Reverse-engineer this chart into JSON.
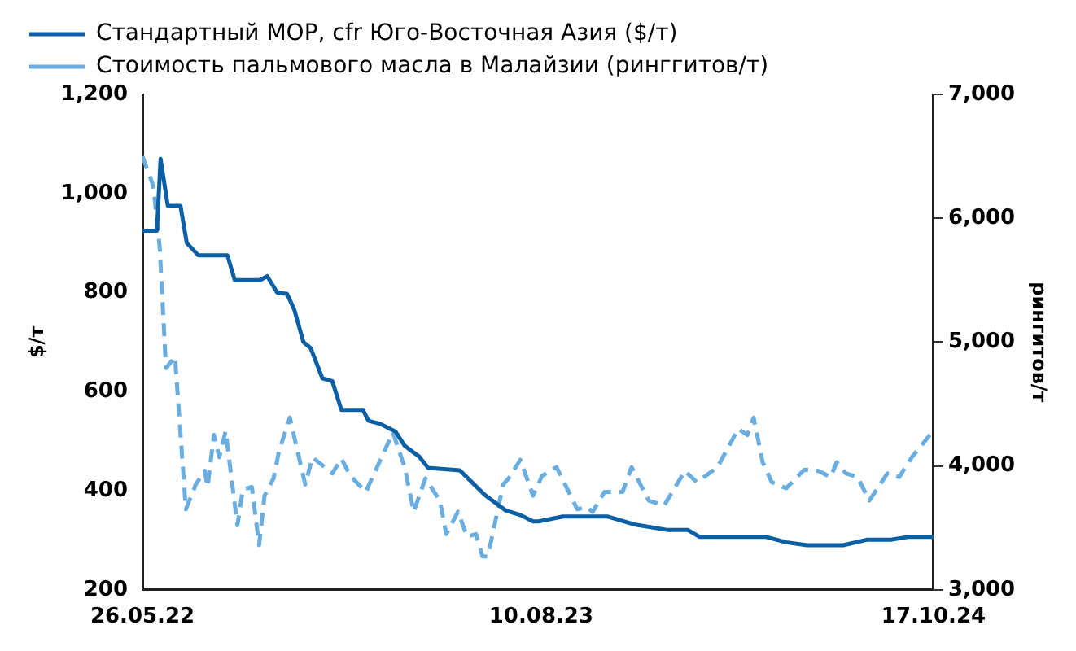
{
  "chart_data": {
    "type": "line",
    "xlim": [
      "2022-05-26",
      "2024-10-17"
    ],
    "xticks": [
      {
        "value": "2022-05-26",
        "label": "26.05.22"
      },
      {
        "value": "2023-08-10",
        "label": "10.08.23"
      },
      {
        "value": "2024-10-17",
        "label": "17.10.24"
      }
    ],
    "ylim": [
      200,
      1200
    ],
    "yticks": [
      {
        "value": 200,
        "label": "200"
      },
      {
        "value": 400,
        "label": "400"
      },
      {
        "value": 600,
        "label": "600"
      },
      {
        "value": 800,
        "label": "800"
      },
      {
        "value": 1000,
        "label": "1,000"
      },
      {
        "value": 1200,
        "label": "1,200"
      }
    ],
    "y2lim": [
      3000,
      7000
    ],
    "y2ticks": [
      {
        "value": 3000,
        "label": "3,000"
      },
      {
        "value": 4000,
        "label": "4,000"
      },
      {
        "value": 5000,
        "label": "5,000"
      },
      {
        "value": 6000,
        "label": "6,000"
      },
      {
        "value": 7000,
        "label": "7,000"
      }
    ],
    "ylabel": "$/т",
    "y2label": "рингитов/т",
    "legend": "top left",
    "grid": false,
    "series": [
      {
        "name": "Стандартный MOP, cfr Юго-Восточная Азия ($/т)",
        "color": "#0b5fa5",
        "line_style": "solid",
        "x": [
          "2022-05-26",
          "2022-06-11",
          "2022-06-15",
          "2022-06-23",
          "2022-07-07",
          "2022-07-14",
          "2022-07-27",
          "2022-08-28",
          "2022-09-05",
          "2022-10-03",
          "2022-10-11",
          "2022-10-22",
          "2022-11-02",
          "2022-11-10",
          "2022-11-20",
          "2022-11-28",
          "2022-12-11",
          "2022-12-22",
          "2023-01-01",
          "2023-01-25",
          "2023-01-31",
          "2023-02-13",
          "2023-03-02",
          "2023-03-12",
          "2023-03-28",
          "2023-04-07",
          "2023-05-12",
          "2023-06-09",
          "2023-07-02",
          "2023-07-18",
          "2023-08-01",
          "2023-08-07",
          "2023-09-03",
          "2023-10-22",
          "2023-11-21",
          "2023-12-27",
          "2024-01-19",
          "2024-02-01",
          "2024-04-14",
          "2024-05-07",
          "2024-05-30",
          "2024-07-09",
          "2024-08-04",
          "2024-08-31",
          "2024-09-20",
          "2024-10-17"
        ],
        "values": [
          925,
          925,
          1070,
          975,
          975,
          900,
          875,
          875,
          825,
          825,
          833,
          800,
          797,
          765,
          700,
          688,
          627,
          621,
          563,
          563,
          541,
          535,
          519,
          491,
          469,
          446,
          441,
          391,
          360,
          351,
          338,
          338,
          348,
          348,
          332,
          321,
          321,
          307,
          307,
          296,
          290,
          290,
          301,
          301,
          307,
          307
        ]
      },
      {
        "name": "Стоимость пальмового масла в Малайзии (ринггитов/т)",
        "color": "#6aade0",
        "line_style": "dashed",
        "axis": "y2",
        "x": [
          "2022-05-26",
          "2022-06-07",
          "2022-06-14",
          "2022-06-21",
          "2022-07-01",
          "2022-07-13",
          "2022-07-24",
          "2022-08-03",
          "2022-08-06",
          "2022-08-13",
          "2022-08-19",
          "2022-08-26",
          "2022-09-08",
          "2022-09-14",
          "2022-09-24",
          "2022-10-02",
          "2022-10-08",
          "2022-10-18",
          "2022-10-24",
          "2022-11-05",
          "2022-11-22",
          "2022-11-30",
          "2022-12-22",
          "2023-01-01",
          "2023-01-11",
          "2023-01-28",
          "2023-02-27",
          "2023-03-12",
          "2023-03-22",
          "2023-04-04",
          "2023-04-20",
          "2023-04-27",
          "2023-05-10",
          "2023-05-20",
          "2023-05-30",
          "2023-06-06",
          "2023-06-12",
          "2023-06-29",
          "2023-07-05",
          "2023-07-18",
          "2023-08-01",
          "2023-08-11",
          "2023-08-27",
          "2023-09-19",
          "2023-09-29",
          "2023-10-06",
          "2023-10-19",
          "2023-11-08",
          "2023-11-18",
          "2023-12-07",
          "2023-12-24",
          "2024-01-16",
          "2024-01-29",
          "2024-02-08",
          "2024-02-21",
          "2024-03-15",
          "2024-03-25",
          "2024-04-01",
          "2024-04-11",
          "2024-04-21",
          "2024-05-07",
          "2024-05-27",
          "2024-06-12",
          "2024-06-25",
          "2024-07-02",
          "2024-07-12",
          "2024-07-25",
          "2024-08-07",
          "2024-08-27",
          "2024-09-09",
          "2024-09-23",
          "2024-10-13",
          "2024-10-17"
        ],
        "values": [
          6500,
          6260,
          5770,
          4790,
          4880,
          3650,
          3850,
          3960,
          3830,
          4250,
          4070,
          4280,
          3520,
          3810,
          3830,
          3360,
          3760,
          3900,
          4120,
          4390,
          3850,
          4070,
          3940,
          4060,
          3920,
          3790,
          4270,
          3990,
          3630,
          3900,
          3720,
          3450,
          3630,
          3430,
          3450,
          3270,
          3270,
          3850,
          3900,
          4050,
          3760,
          3920,
          3990,
          3650,
          3670,
          3630,
          3790,
          3790,
          3990,
          3720,
          3680,
          3960,
          3870,
          3920,
          3990,
          4300,
          4250,
          4390,
          4030,
          3870,
          3820,
          3970,
          3960,
          3910,
          4030,
          3940,
          3910,
          3720,
          3940,
          3910,
          4070,
          4250,
          4270
        ]
      }
    ]
  }
}
